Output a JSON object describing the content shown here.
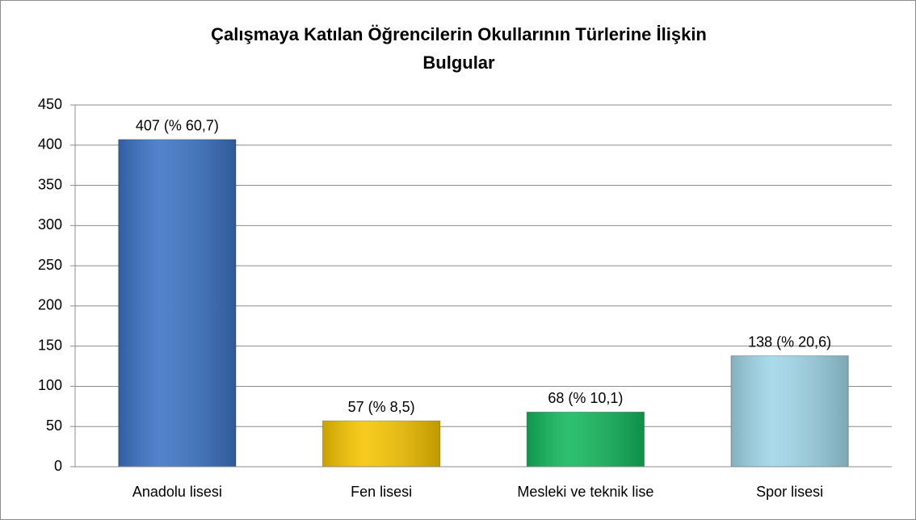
{
  "chart_data": {
    "type": "bar",
    "title": [
      "Çalışmaya Katılan Öğrencilerin Okullarının Türlerine İlişkin",
      "Bulgular"
    ],
    "categories": [
      "Anadolu lisesi",
      "Fen lisesi",
      "Mesleki ve teknik lise",
      "Spor lisesi"
    ],
    "values": [
      407,
      57,
      68,
      138
    ],
    "value_labels": [
      "407 (% 60,7)",
      "57 (% 8,5)",
      "68 (% 10,1)",
      "138 (% 20,6)"
    ],
    "colors": [
      "#3b72c4",
      "#f6c400",
      "#12b65c",
      "#9fd6e8"
    ],
    "ylim": [
      0,
      450
    ],
    "yticks": [
      0,
      50,
      100,
      150,
      200,
      250,
      300,
      350,
      400,
      450
    ],
    "grid": true
  }
}
